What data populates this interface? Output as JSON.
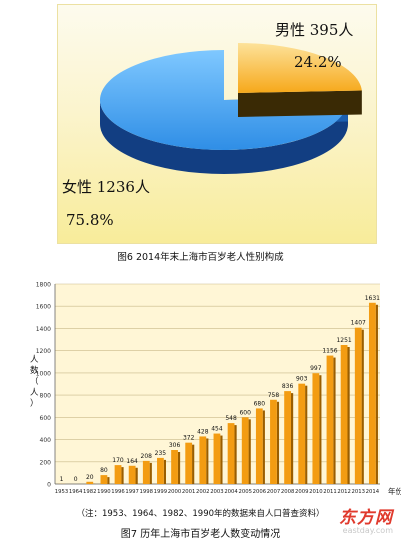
{
  "figure6": {
    "caption": "图6   2014年末上海市百岁老人性别构成",
    "male_label": "男性 395人",
    "male_pct": "24.2%",
    "female_label": "女性 1236人",
    "female_pct": "75.8%"
  },
  "figure7": {
    "note": "（注：1953、1964、1982、1990年的数据来自人口普查资料）",
    "caption": "图7    历年上海市百岁老人数变动情况"
  },
  "watermark": {
    "logo": "东方网",
    "url": "eastday.com"
  },
  "colors": {
    "female": "#2f8ee6",
    "female_dark": "#123e82",
    "male": "#f6a81a",
    "male_dark": "#5a4208",
    "bar": "#f39c12",
    "bar_side": "#9a5e00"
  },
  "chart_data": [
    {
      "type": "pie",
      "style": "3d-exploded",
      "slices": [
        {
          "label": "男性",
          "count": 395,
          "percent": 24.2,
          "color": "#f6a81a"
        },
        {
          "label": "女性",
          "count": 1236,
          "percent": 75.8,
          "color": "#2f8ee6"
        }
      ]
    },
    {
      "type": "bar",
      "categories": [
        "1953",
        "1964",
        "1982",
        "1990",
        "1996",
        "1997",
        "1998",
        "1999",
        "2000",
        "2001",
        "2002",
        "2003",
        "2004",
        "2005",
        "2006",
        "2007",
        "2008",
        "2009",
        "2010",
        "2011",
        "2012",
        "2013",
        "2014"
      ],
      "values": [
        1,
        0,
        20,
        80,
        170,
        164,
        208,
        235,
        306,
        372,
        428,
        454,
        548,
        600,
        680,
        758,
        836,
        903,
        997,
        1156,
        1251,
        1407,
        1631
      ],
      "ylabel": "人数（人）",
      "xlabel": "年份",
      "ylim": [
        0,
        1800
      ],
      "yticks": [
        0,
        200,
        400,
        600,
        800,
        1000,
        1200,
        1400,
        1600,
        1800
      ],
      "grid": true,
      "bar_color": "#f39c12"
    }
  ]
}
